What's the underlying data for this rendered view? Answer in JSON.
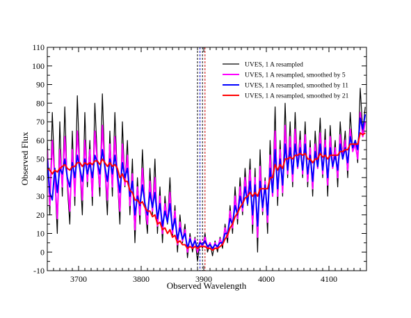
{
  "chart_data": {
    "type": "line",
    "xlabel": "Observed Wavelength",
    "ylabel": "Observed Flux",
    "xlim": [
      3650,
      4160
    ],
    "ylim": [
      -10,
      110
    ],
    "xticks": [
      3700,
      3800,
      3900,
      4000,
      4100
    ],
    "yticks": [
      -10,
      0,
      10,
      20,
      30,
      40,
      50,
      60,
      70,
      80,
      90,
      100,
      110
    ],
    "legend_position": "top-right",
    "grid": false,
    "vertical_markers": [
      {
        "x": 3890,
        "color": "#000000",
        "style": "dashed"
      },
      {
        "x": 3894,
        "color": "#0000cc",
        "style": "dashed"
      },
      {
        "x": 3898,
        "color": "#000000",
        "style": "dashed"
      },
      {
        "x": 3902,
        "color": "#cc0000",
        "style": "dashed"
      }
    ],
    "series": [
      {
        "name": "UVES, 1 A resampled",
        "color": "#000000",
        "x": [
          3650,
          3654,
          3658,
          3662,
          3666,
          3670,
          3674,
          3678,
          3682,
          3686,
          3690,
          3694,
          3698,
          3702,
          3706,
          3710,
          3714,
          3718,
          3722,
          3726,
          3730,
          3734,
          3738,
          3742,
          3746,
          3750,
          3754,
          3758,
          3762,
          3766,
          3770,
          3774,
          3778,
          3782,
          3786,
          3790,
          3794,
          3798,
          3802,
          3806,
          3810,
          3814,
          3818,
          3822,
          3826,
          3830,
          3834,
          3838,
          3842,
          3846,
          3850,
          3854,
          3858,
          3862,
          3866,
          3870,
          3874,
          3878,
          3882,
          3886,
          3890,
          3894,
          3898,
          3902,
          3906,
          3910,
          3914,
          3918,
          3922,
          3926,
          3930,
          3934,
          3938,
          3942,
          3946,
          3950,
          3954,
          3958,
          3962,
          3966,
          3970,
          3974,
          3978,
          3982,
          3986,
          3990,
          3994,
          3998,
          4002,
          4006,
          4010,
          4014,
          4018,
          4022,
          4026,
          4030,
          4034,
          4038,
          4042,
          4046,
          4050,
          4054,
          4058,
          4062,
          4066,
          4070,
          4074,
          4078,
          4082,
          4086,
          4090,
          4094,
          4098,
          4102,
          4106,
          4110,
          4114,
          4118,
          4122,
          4126,
          4130,
          4134,
          4138,
          4142,
          4146,
          4150,
          4154,
          4158
        ],
        "y": [
          60,
          20,
          75,
          40,
          10,
          70,
          30,
          78,
          35,
          15,
          65,
          25,
          84,
          45,
          20,
          75,
          35,
          60,
          25,
          80,
          50,
          30,
          85,
          45,
          20,
          65,
          30,
          75,
          40,
          15,
          70,
          35,
          60,
          20,
          50,
          5,
          40,
          15,
          55,
          25,
          10,
          45,
          20,
          50,
          10,
          35,
          5,
          30,
          15,
          40,
          8,
          25,
          0,
          20,
          5,
          15,
          -3,
          10,
          0,
          8,
          -5,
          6,
          2,
          10,
          0,
          5,
          -2,
          6,
          0,
          8,
          2,
          15,
          5,
          25,
          10,
          35,
          15,
          40,
          20,
          45,
          25,
          50,
          10,
          45,
          0,
          55,
          20,
          40,
          10,
          60,
          30,
          78,
          25,
          60,
          30,
          80,
          40,
          70,
          35,
          75,
          45,
          65,
          40,
          70,
          35,
          60,
          30,
          65,
          45,
          72,
          40,
          66,
          30,
          68,
          45,
          60,
          35,
          70,
          50,
          65,
          40,
          75,
          55,
          60,
          48,
          88,
          65,
          78
        ]
      },
      {
        "name": "UVES, 1 A resampled, smoothed by 5",
        "color": "#ff00ff",
        "x": [
          3650,
          3654,
          3658,
          3662,
          3666,
          3670,
          3674,
          3678,
          3682,
          3686,
          3690,
          3694,
          3698,
          3702,
          3706,
          3710,
          3714,
          3718,
          3722,
          3726,
          3730,
          3734,
          3738,
          3742,
          3746,
          3750,
          3754,
          3758,
          3762,
          3766,
          3770,
          3774,
          3778,
          3782,
          3786,
          3790,
          3794,
          3798,
          3802,
          3806,
          3810,
          3814,
          3818,
          3822,
          3826,
          3830,
          3834,
          3838,
          3842,
          3846,
          3850,
          3854,
          3858,
          3862,
          3866,
          3870,
          3874,
          3878,
          3882,
          3886,
          3890,
          3894,
          3898,
          3902,
          3906,
          3910,
          3914,
          3918,
          3922,
          3926,
          3930,
          3934,
          3938,
          3942,
          3946,
          3950,
          3954,
          3958,
          3962,
          3966,
          3970,
          3974,
          3978,
          3982,
          3986,
          3990,
          3994,
          3998,
          4002,
          4006,
          4010,
          4014,
          4018,
          4022,
          4026,
          4030,
          4034,
          4038,
          4042,
          4046,
          4050,
          4054,
          4058,
          4062,
          4066,
          4070,
          4074,
          4078,
          4082,
          4086,
          4090,
          4094,
          4098,
          4102,
          4106,
          4110,
          4114,
          4118,
          4122,
          4126,
          4130,
          4134,
          4138,
          4142,
          4146,
          4150,
          4154,
          4158
        ],
        "y": [
          55,
          25,
          60,
          40,
          18,
          55,
          35,
          62,
          38,
          22,
          55,
          30,
          65,
          45,
          28,
          60,
          38,
          55,
          30,
          65,
          48,
          35,
          68,
          45,
          28,
          58,
          35,
          62,
          40,
          22,
          58,
          36,
          52,
          25,
          42,
          12,
          35,
          20,
          45,
          25,
          15,
          38,
          22,
          40,
          14,
          30,
          10,
          26,
          16,
          32,
          10,
          22,
          4,
          16,
          6,
          12,
          0,
          8,
          2,
          7,
          0,
          6,
          3,
          8,
          2,
          5,
          1,
          5,
          2,
          7,
          4,
          13,
          8,
          22,
          13,
          30,
          18,
          35,
          22,
          40,
          26,
          44,
          15,
          40,
          8,
          46,
          22,
          38,
          16,
          52,
          30,
          65,
          30,
          55,
          32,
          68,
          42,
          62,
          38,
          66,
          45,
          60,
          42,
          63,
          38,
          56,
          34,
          58,
          45,
          64,
          42,
          60,
          36,
          62,
          45,
          56,
          40,
          63,
          50,
          60,
          44,
          66,
          54,
          58,
          50,
          75,
          62,
          70
        ]
      },
      {
        "name": "UVES, 1 A resampled, smoothed by 11",
        "color": "#0000ff",
        "x": [
          3650,
          3654,
          3658,
          3662,
          3666,
          3670,
          3674,
          3678,
          3682,
          3686,
          3690,
          3694,
          3698,
          3702,
          3706,
          3710,
          3714,
          3718,
          3722,
          3726,
          3730,
          3734,
          3738,
          3742,
          3746,
          3750,
          3754,
          3758,
          3762,
          3766,
          3770,
          3774,
          3778,
          3782,
          3786,
          3790,
          3794,
          3798,
          3802,
          3806,
          3810,
          3814,
          3818,
          3822,
          3826,
          3830,
          3834,
          3838,
          3842,
          3846,
          3850,
          3854,
          3858,
          3862,
          3866,
          3870,
          3874,
          3878,
          3882,
          3886,
          3890,
          3894,
          3898,
          3902,
          3906,
          3910,
          3914,
          3918,
          3922,
          3926,
          3930,
          3934,
          3938,
          3942,
          3946,
          3950,
          3954,
          3958,
          3962,
          3966,
          3970,
          3974,
          3978,
          3982,
          3986,
          3990,
          3994,
          3998,
          4002,
          4006,
          4010,
          4014,
          4018,
          4022,
          4026,
          4030,
          4034,
          4038,
          4042,
          4046,
          4050,
          4054,
          4058,
          4062,
          4066,
          4070,
          4074,
          4078,
          4082,
          4086,
          4090,
          4094,
          4098,
          4102,
          4106,
          4110,
          4114,
          4118,
          4122,
          4126,
          4130,
          4134,
          4138,
          4142,
          4146,
          4150,
          4154,
          4158
        ],
        "y": [
          50,
          32,
          28,
          45,
          32,
          45,
          42,
          50,
          40,
          35,
          48,
          40,
          52,
          45,
          38,
          50,
          42,
          48,
          40,
          52,
          48,
          42,
          55,
          46,
          38,
          50,
          42,
          52,
          42,
          32,
          48,
          40,
          45,
          30,
          38,
          20,
          30,
          25,
          36,
          26,
          20,
          32,
          24,
          32,
          18,
          26,
          14,
          22,
          16,
          26,
          12,
          18,
          7,
          13,
          7,
          10,
          2,
          7,
          3,
          6,
          2,
          5,
          4,
          6,
          3,
          4,
          2,
          4,
          3,
          5,
          5,
          10,
          10,
          18,
          15,
          25,
          20,
          30,
          24,
          35,
          26,
          38,
          20,
          36,
          14,
          38,
          24,
          36,
          20,
          45,
          32,
          55,
          34,
          50,
          36,
          58,
          44,
          56,
          42,
          58,
          46,
          56,
          44,
          58,
          42,
          52,
          38,
          54,
          46,
          58,
          44,
          56,
          40,
          56,
          46,
          52,
          44,
          58,
          50,
          56,
          48,
          62,
          56,
          60,
          55,
          72,
          66,
          74
        ]
      },
      {
        "name": "UVES, 1 A resampled, smoothed by 21",
        "color": "#ff0000",
        "x": [
          3650,
          3654,
          3658,
          3662,
          3666,
          3670,
          3674,
          3678,
          3682,
          3686,
          3690,
          3694,
          3698,
          3702,
          3706,
          3710,
          3714,
          3718,
          3722,
          3726,
          3730,
          3734,
          3738,
          3742,
          3746,
          3750,
          3754,
          3758,
          3762,
          3766,
          3770,
          3774,
          3778,
          3782,
          3786,
          3790,
          3794,
          3798,
          3802,
          3806,
          3810,
          3814,
          3818,
          3822,
          3826,
          3830,
          3834,
          3838,
          3842,
          3846,
          3850,
          3854,
          3858,
          3862,
          3866,
          3870,
          3874,
          3878,
          3882,
          3886,
          3890,
          3894,
          3898,
          3902,
          3906,
          3910,
          3914,
          3918,
          3922,
          3926,
          3930,
          3934,
          3938,
          3942,
          3946,
          3950,
          3954,
          3958,
          3962,
          3966,
          3970,
          3974,
          3978,
          3982,
          3986,
          3990,
          3994,
          3998,
          4002,
          4006,
          4010,
          4014,
          4018,
          4022,
          4026,
          4030,
          4034,
          4038,
          4042,
          4046,
          4050,
          4054,
          4058,
          4062,
          4066,
          4070,
          4074,
          4078,
          4082,
          4086,
          4090,
          4094,
          4098,
          4102,
          4106,
          4110,
          4114,
          4118,
          4122,
          4126,
          4130,
          4134,
          4138,
          4142,
          4146,
          4150,
          4154,
          4158
        ],
        "y": [
          45,
          44,
          42,
          44,
          43,
          45,
          46,
          47,
          45,
          44,
          46,
          46,
          48,
          48,
          46,
          48,
          47,
          48,
          47,
          49,
          49,
          47,
          50,
          48,
          46,
          48,
          46,
          47,
          45,
          40,
          42,
          38,
          38,
          33,
          32,
          28,
          28,
          26,
          27,
          24,
          22,
          22,
          19,
          20,
          15,
          16,
          12,
          13,
          10,
          12,
          8,
          9,
          5,
          6,
          4,
          4,
          2,
          3,
          2,
          3,
          2,
          3,
          3,
          3,
          2,
          2,
          1,
          2,
          2,
          3,
          4,
          7,
          9,
          13,
          15,
          19,
          21,
          24,
          26,
          29,
          30,
          32,
          30,
          32,
          30,
          34,
          34,
          34,
          34,
          40,
          40,
          47,
          44,
          47,
          45,
          50,
          50,
          51,
          50,
          52,
          52,
          53,
          52,
          53,
          50,
          50,
          48,
          50,
          50,
          53,
          51,
          52,
          50,
          52,
          52,
          52,
          52,
          54,
          54,
          55,
          55,
          58,
          58,
          58,
          58,
          64,
          63,
          64
        ]
      }
    ]
  }
}
